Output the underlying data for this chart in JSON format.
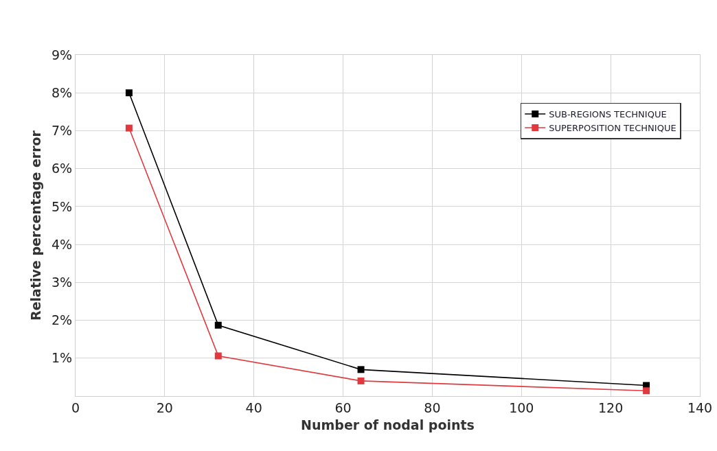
{
  "chart_data": {
    "type": "line",
    "xlabel": "Number of nodal points",
    "ylabel": "Relative percentage error",
    "x": [
      12,
      32,
      64,
      128
    ],
    "series": [
      {
        "name": "SUB-REGIONS TECHNIQUE",
        "color": "#000000",
        "values": [
          8.0,
          1.87,
          0.7,
          0.28
        ]
      },
      {
        "name": "SUPERPOSITION TECHNIQUE",
        "color": "#e0393e",
        "values": [
          7.07,
          1.06,
          0.4,
          0.14
        ]
      }
    ],
    "xlim": [
      0,
      140
    ],
    "xticks": [
      0,
      20,
      40,
      60,
      80,
      100,
      120,
      140
    ],
    "ylim": [
      0,
      9
    ],
    "yticks": [
      {
        "value": 1,
        "label": "1%"
      },
      {
        "value": 2,
        "label": "2%"
      },
      {
        "value": 3,
        "label": "3%"
      },
      {
        "value": 4,
        "label": "4%"
      },
      {
        "value": 5,
        "label": "5%"
      },
      {
        "value": 6,
        "label": "6%"
      },
      {
        "value": 7,
        "label": "7%"
      },
      {
        "value": 8,
        "label": "8%"
      },
      {
        "value": 9,
        "label": "9%"
      }
    ],
    "grid": true,
    "legend": "top right",
    "marker": "square",
    "line_style": "solid"
  }
}
